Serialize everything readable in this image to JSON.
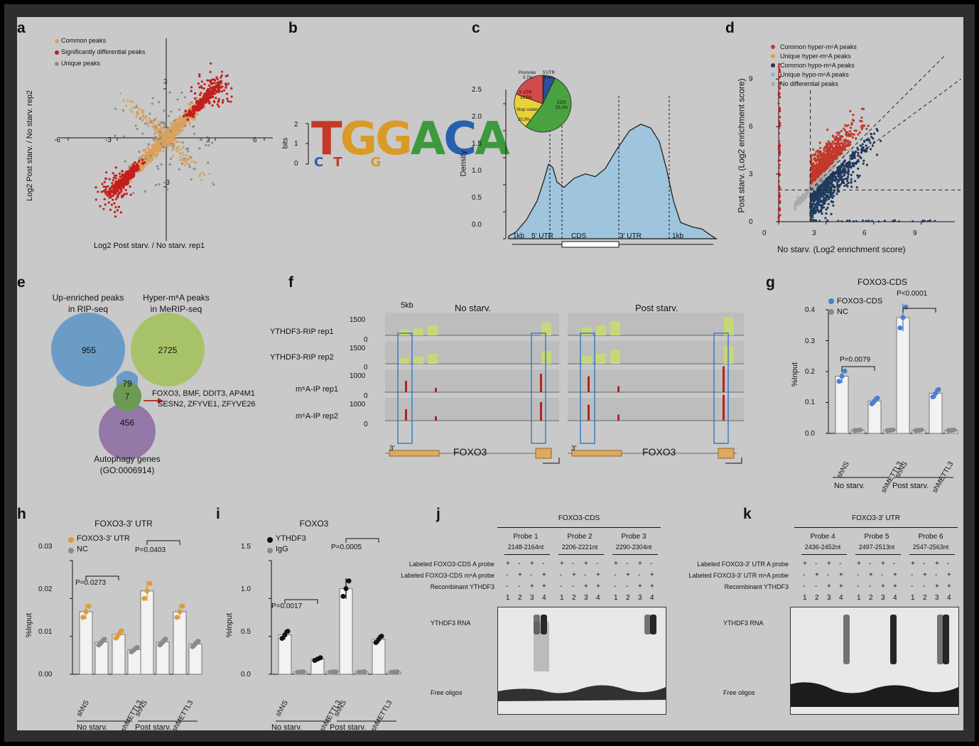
{
  "colors": {
    "common": "#d9a15c",
    "diff": "#c21f1f",
    "unique": "#8c8c8c",
    "hyperCommon": "#c0392b",
    "hyperUnique": "#e0a030",
    "hypoCommon": "#1f3a5f",
    "hypoUnique": "#8ab6d8",
    "nodiff": "#aaaaaa",
    "density": "#9fc4dd",
    "venn1": "#6a9cc6",
    "venn2": "#a8c26a",
    "venn3": "#9478a8",
    "vennCenter": "#6b9a55",
    "blue": "#4a7fd1",
    "orange": "#e09a3a",
    "black": "#111111",
    "grey": "#8a8a8a",
    "track": "#c8d67a",
    "m6a": "#b22222"
  },
  "panels": {
    "a": "a",
    "b": "b",
    "c": "c",
    "d": "d",
    "e": "e",
    "f": "f",
    "g": "g",
    "h": "h",
    "i": "i",
    "j": "j",
    "k": "k"
  },
  "panel_a": {
    "legend": [
      "Common peaks",
      "Significantly differential peaks",
      "Unique peaks"
    ],
    "xlabel": "Log2  Post starv. / No starv.  rep1",
    "ylabel": "Log2  Post starv. / No starv.  rep2",
    "xticks": [
      "-6",
      "-3",
      "3",
      "6"
    ],
    "yticks": [
      "3",
      "-3"
    ]
  },
  "panel_b": {
    "ylabel": "bits",
    "yticks": [
      "2",
      "1",
      "0"
    ],
    "motif_top": [
      "T",
      "G",
      "G",
      "A",
      "C",
      "A"
    ],
    "motif_bottom": [
      "C",
      "T",
      "G"
    ]
  },
  "panel_c": {
    "ylabel": "Density",
    "yticks": [
      "2.5",
      "2.0",
      "1.5",
      "1.0",
      "0.5",
      "0.0"
    ],
    "xregions": [
      "1kb",
      "5' UTR",
      "CDS",
      "3' UTR",
      "1kb"
    ],
    "pie": [
      {
        "label": "Promoter",
        "value": "0.7%",
        "color": "#6a4c93"
      },
      {
        "label": "5'UTR",
        "value": "6.4%",
        "color": "#2c4f9e"
      },
      {
        "label": "CDS",
        "value": "53.1%",
        "color": "#48a23f"
      },
      {
        "label": "Stop codon",
        "value": "20.3%",
        "color": "#e8d13a"
      },
      {
        "label": "3' UTR",
        "value": "19.5%",
        "color": "#d24b4b"
      }
    ]
  },
  "panel_d": {
    "legend": [
      "Common hyper-m⁶A peaks",
      "Unique hyper-m⁶A peaks",
      "Common hypo-m⁶A peaks",
      "Unique hypo-m⁶A peaks",
      "No differential peaks"
    ],
    "xlabel": "No starv. (Log2 enrichment score)",
    "ylabel": "Post starv. (Log2 enrichment score)",
    "xticks": [
      "0",
      "3",
      "6",
      "9"
    ],
    "yticks": [
      "0",
      "3",
      "6",
      "9"
    ]
  },
  "panel_e": {
    "set1": "Up-enriched peaks\nin RIP-seq",
    "set1_l1": "Up-enriched peaks",
    "set1_l2": "in RIP-seq",
    "set2_l1": "Hyper-m⁶A peaks",
    "set2_l2": "in MeRIP-seq",
    "set3_l1": "Autophagy genes",
    "set3_l2": "(GO:0006914)",
    "n1": "955",
    "n2": "2725",
    "n12": "79",
    "n123": "7",
    "n3": "456",
    "genes_l1": "FOXO3,  BMF,   DDIT3,  AP4M1",
    "genes_l2": "SESN2,  ZFYVE1,  ZFYVE26"
  },
  "panel_f": {
    "scale": "5kb",
    "cond1": "No starv.",
    "cond2": "Post starv.",
    "tracks": [
      "YTHDF3-RIP rep1",
      "YTHDF3-RIP rep2",
      "m⁶A-IP rep1",
      "m⁶A-IP rep2"
    ],
    "maxes": [
      "1500",
      "1500",
      "1000",
      "1000"
    ],
    "zero": "0",
    "gene": "FOXO3",
    "end": "3'"
  },
  "panel_g": {
    "title": "FOXO3-CDS",
    "legend": [
      "FOXO3-CDS",
      "NC"
    ],
    "ylabel": "%Input",
    "yticks": [
      "0.4",
      "0.3",
      "0.2",
      "0.1",
      "0.0"
    ],
    "groups": [
      "shNS",
      "shMETTL3",
      "shNS",
      "shMETTL3"
    ],
    "conds": [
      "No starv.",
      "Post starv."
    ],
    "p1": "P=0.0079",
    "p2": "P<0.0001"
  },
  "panel_h": {
    "title": "FOXO3-3' UTR",
    "legend": [
      "FOXO3-3' UTR",
      "NC"
    ],
    "ylabel": "%Input",
    "yticks": [
      "0.03",
      "0.02",
      "0.01",
      "0.00"
    ],
    "groups": [
      "shNS",
      "shMETTL3",
      "shNS",
      "shMETTL3"
    ],
    "conds": [
      "No starv.",
      "Post starv."
    ],
    "p1": "P=0.0273",
    "p2": "P=0.0403"
  },
  "panel_i": {
    "title": "FOXO3",
    "legend": [
      "YTHDF3",
      "IgG"
    ],
    "ylabel": "%Input",
    "yticks": [
      "1.5",
      "1.0",
      "0.5",
      "0.0"
    ],
    "groups": [
      "shNS",
      "shMETTL3",
      "shNS",
      "shMETTL3"
    ],
    "conds": [
      "No starv.",
      "Post starv."
    ],
    "p1": "P=0.0017",
    "p2": "P=0.0005"
  },
  "panel_j": {
    "title": "FOXO3-CDS",
    "probes": [
      [
        "Probe 1",
        "2148-2164nt"
      ],
      [
        "Probe 2",
        "2206-2221nt"
      ],
      [
        "Probe 3",
        "2290-2304nt"
      ]
    ],
    "rows": [
      "Labeled FOXO3-CDS A probe",
      "Labeled FOXO3-CDS m⁶A probe",
      "Recombinant YTHDF3"
    ],
    "signs": [
      [
        "+",
        "-",
        "+",
        "-"
      ],
      [
        "-",
        "+",
        "-",
        "+"
      ],
      [
        "-",
        "-",
        "+",
        "+"
      ]
    ],
    "lanes": [
      "1",
      "2",
      "3",
      "4"
    ],
    "band1": "YTHDF3 RNA",
    "band2": "Free oligos"
  },
  "panel_k": {
    "title": "FOXO3-3' UTR",
    "probes": [
      [
        "Probe 4",
        "2436-2452nt"
      ],
      [
        "Probe 5",
        "2497-2513nt"
      ],
      [
        "Probe 6",
        "2547-2563nt"
      ]
    ],
    "rows": [
      "Labeled FOXO3-3' UTR A probe",
      "Labeled FOXO3-3' UTR m⁶A probe",
      "Recombinant YTHDF3"
    ],
    "signs": [
      [
        "+",
        "-",
        "+",
        "-"
      ],
      [
        "-",
        "+",
        "-",
        "+"
      ],
      [
        "-",
        "-",
        "+",
        "+"
      ]
    ],
    "lanes": [
      "1",
      "2",
      "3",
      "4"
    ],
    "band1": "YTHDF3 RNA",
    "band2": "Free oligos"
  },
  "chart_data": [
    {
      "panel": "g",
      "type": "bar",
      "categories": [
        "No starv. shNS",
        "No starv. shMETTL3",
        "Post starv. shNS",
        "Post starv. shMETTL3"
      ],
      "series": [
        {
          "name": "FOXO3-CDS",
          "values": [
            0.185,
            0.105,
            0.375,
            0.13
          ]
        },
        {
          "name": "NC",
          "values": [
            0.01,
            0.01,
            0.01,
            0.01
          ]
        }
      ],
      "ylim": [
        0,
        0.4
      ],
      "ylabel": "%Input"
    },
    {
      "panel": "h",
      "type": "bar",
      "categories": [
        "No starv. shNS",
        "No starv. shMETTL3",
        "Post starv. shNS",
        "Post starv. shMETTL3"
      ],
      "series": [
        {
          "name": "FOXO3-3' UTR",
          "values": [
            0.0165,
            0.0105,
            0.022,
            0.0165
          ]
        },
        {
          "name": "NC",
          "values": [
            0.0085,
            0.0065,
            0.0085,
            0.008
          ]
        }
      ],
      "ylim": [
        0,
        0.03
      ],
      "ylabel": "%Input"
    },
    {
      "panel": "i",
      "type": "bar",
      "categories": [
        "No starv. shNS",
        "No starv. shMETTL3",
        "Post starv. shNS",
        "Post starv. shMETTL3"
      ],
      "series": [
        {
          "name": "YTHDF3",
          "values": [
            0.52,
            0.2,
            1.13,
            0.46
          ]
        },
        {
          "name": "IgG",
          "values": [
            0.03,
            0.03,
            0.03,
            0.03
          ]
        }
      ],
      "ylim": [
        0,
        1.5
      ],
      "ylabel": "%Input"
    }
  ]
}
